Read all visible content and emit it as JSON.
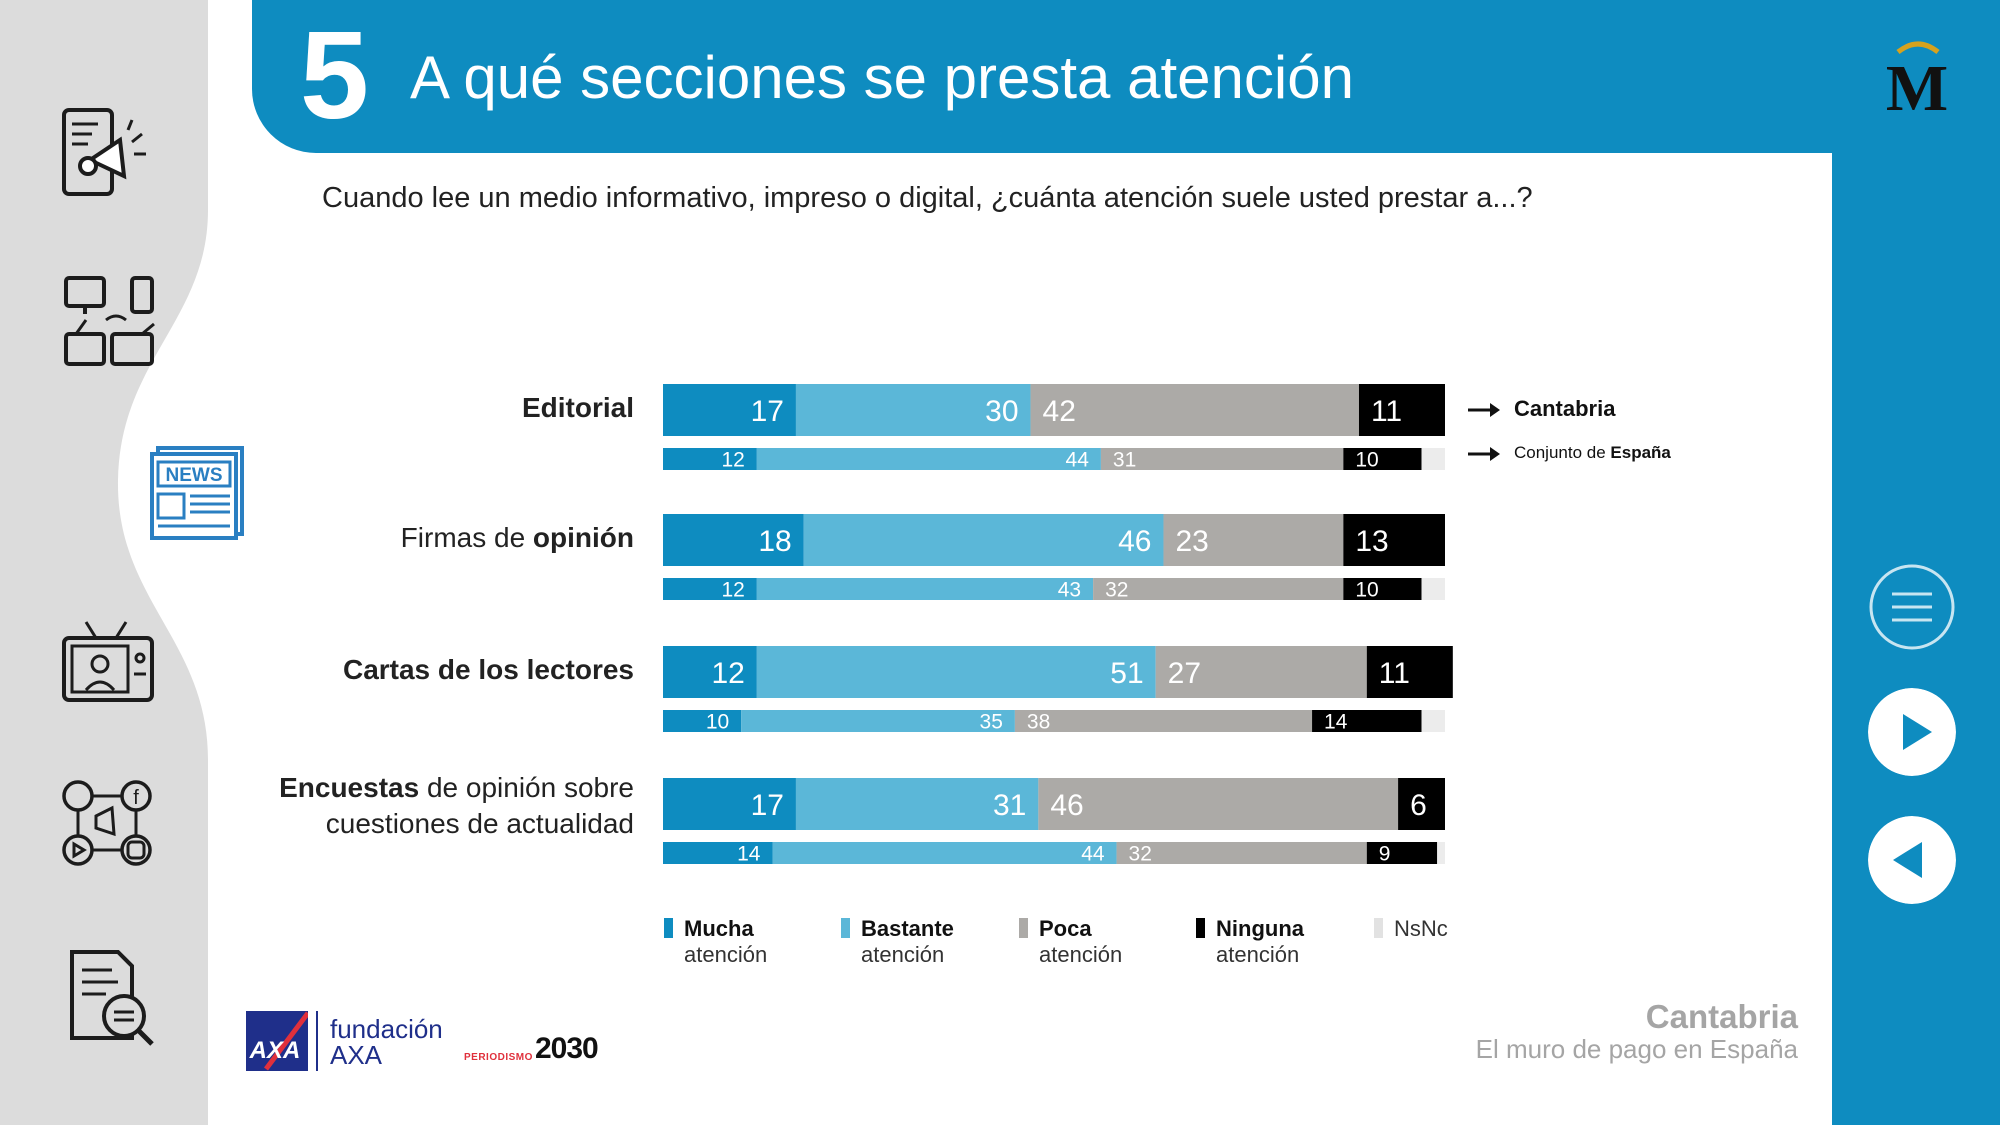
{
  "header": {
    "number": "5",
    "title": "A qué secciones se presta atención"
  },
  "question": "Cuando lee un medio informativo, impreso o digital, ¿cuánta atención suele usted prestar a...?",
  "series_legend": {
    "cantabria": "Cantabria",
    "espana_prefix": "Conjunto de ",
    "espana_bold": "España"
  },
  "legend": [
    {
      "bold": "Mucha",
      "rest": "atención",
      "color": "#0e8cc0"
    },
    {
      "bold": "Bastante",
      "rest": "atención",
      "color": "#5bb7d8"
    },
    {
      "bold": "Poca",
      "rest": "atención",
      "color": "#acaaa7"
    },
    {
      "bold": "Ninguna",
      "rest": "atención",
      "color": "#000000"
    },
    {
      "bold": "",
      "rest": "NsNc",
      "color": "#ececec"
    }
  ],
  "categories": [
    {
      "line1_bold": "Editorial",
      "line1_rest": "",
      "line2": ""
    },
    {
      "line1_pre": "Firmas de ",
      "line1_bold": "opinión",
      "line2": ""
    },
    {
      "line1_bold": "Cartas de los lectores",
      "line1_rest": "",
      "line2": ""
    },
    {
      "line1_bold": "Encuestas",
      "line1_rest": " de opinión sobre",
      "line2": "cuestiones de actualidad"
    }
  ],
  "chart_data": {
    "type": "bar",
    "orientation": "horizontal-stacked-100",
    "categories": [
      "Editorial",
      "Firmas de opinión",
      "Cartas de los lectores",
      "Encuestas de opinión sobre cuestiones de actualidad"
    ],
    "segments": [
      "Mucha atención",
      "Bastante atención",
      "Poca atención",
      "Ninguna atención",
      "NsNc"
    ],
    "series": [
      {
        "name": "Cantabria",
        "values": [
          [
            17,
            30,
            42,
            11,
            0
          ],
          [
            18,
            46,
            23,
            13,
            0
          ],
          [
            12,
            51,
            27,
            11,
            0
          ],
          [
            17,
            31,
            46,
            6,
            0
          ]
        ]
      },
      {
        "name": "Conjunto de España",
        "values": [
          [
            12,
            44,
            31,
            10,
            3
          ],
          [
            12,
            43,
            32,
            10,
            3
          ],
          [
            10,
            35,
            38,
            14,
            3
          ],
          [
            14,
            44,
            32,
            9,
            1
          ]
        ]
      }
    ],
    "colors": [
      "#0e8cc0",
      "#5bb7d8",
      "#acaaa7",
      "#000000",
      "#ececec"
    ]
  },
  "footer": {
    "region": "Cantabria",
    "subtitle": "El muro de pago en España",
    "axa_line1": "fundación",
    "axa_line2": "AXA",
    "axa_logo": "AXA",
    "periodismo_small": "PERIODISMO",
    "periodismo_big": "2030"
  }
}
